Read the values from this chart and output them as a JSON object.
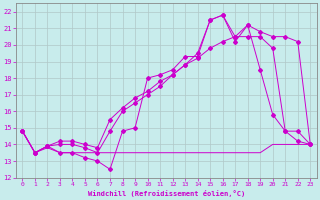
{
  "xlabel": "Windchill (Refroidissement éolien,°C)",
  "background_color": "#c8ecec",
  "grid_color": "#b0c8c8",
  "line_color": "#cc00cc",
  "xlim": [
    -0.5,
    23.5
  ],
  "ylim": [
    12,
    22.5
  ],
  "xticks": [
    0,
    1,
    2,
    3,
    4,
    5,
    6,
    7,
    8,
    9,
    10,
    11,
    12,
    13,
    14,
    15,
    16,
    17,
    18,
    19,
    20,
    21,
    22,
    23
  ],
  "yticks": [
    12,
    13,
    14,
    15,
    16,
    17,
    18,
    19,
    20,
    21,
    22
  ],
  "line_flat_x": [
    0,
    1,
    2,
    3,
    4,
    5,
    6,
    7,
    8,
    9,
    10,
    11,
    12,
    13,
    14,
    15,
    16,
    17,
    18,
    19,
    20,
    21,
    22,
    23
  ],
  "line_flat_y": [
    14.8,
    13.5,
    13.8,
    13.5,
    13.5,
    13.5,
    13.5,
    13.5,
    13.5,
    13.5,
    13.5,
    13.5,
    13.5,
    13.5,
    13.5,
    13.5,
    13.5,
    13.5,
    13.5,
    13.5,
    14.0,
    14.0,
    14.0,
    14.0
  ],
  "line_zigzag_x": [
    0,
    1,
    2,
    3,
    4,
    5,
    6,
    7,
    8,
    9,
    10,
    11,
    12,
    13,
    14,
    15,
    16,
    17,
    18,
    19,
    20,
    21,
    22,
    23
  ],
  "line_zigzag_y": [
    14.8,
    13.5,
    13.9,
    13.5,
    13.5,
    13.2,
    13.0,
    12.5,
    14.8,
    15.0,
    18.0,
    18.2,
    18.5,
    19.3,
    19.3,
    21.5,
    21.8,
    20.2,
    21.2,
    18.5,
    15.8,
    14.8,
    14.8,
    14.0
  ],
  "line_upper_x": [
    0,
    1,
    2,
    3,
    4,
    5,
    6,
    7,
    8,
    9,
    10,
    11,
    12,
    13,
    14,
    15,
    16,
    17,
    18,
    19,
    20,
    21,
    22,
    23
  ],
  "line_upper_y": [
    14.8,
    13.5,
    13.9,
    14.0,
    14.0,
    13.8,
    13.5,
    14.8,
    16.0,
    16.5,
    17.0,
    17.5,
    18.2,
    18.8,
    19.5,
    21.5,
    21.8,
    20.5,
    21.2,
    20.8,
    20.5,
    20.5,
    20.2,
    14.0
  ],
  "line_linear_x": [
    0,
    1,
    2,
    3,
    4,
    5,
    6,
    7,
    8,
    9,
    10,
    11,
    12,
    13,
    14,
    15,
    16,
    17,
    18,
    19,
    20,
    21,
    22,
    23
  ],
  "line_linear_y": [
    14.8,
    13.5,
    13.9,
    14.2,
    14.2,
    14.0,
    13.8,
    15.5,
    16.2,
    16.8,
    17.2,
    17.8,
    18.2,
    18.8,
    19.2,
    19.8,
    20.2,
    20.5,
    20.5,
    20.5,
    19.8,
    14.8,
    14.2,
    14.0
  ]
}
